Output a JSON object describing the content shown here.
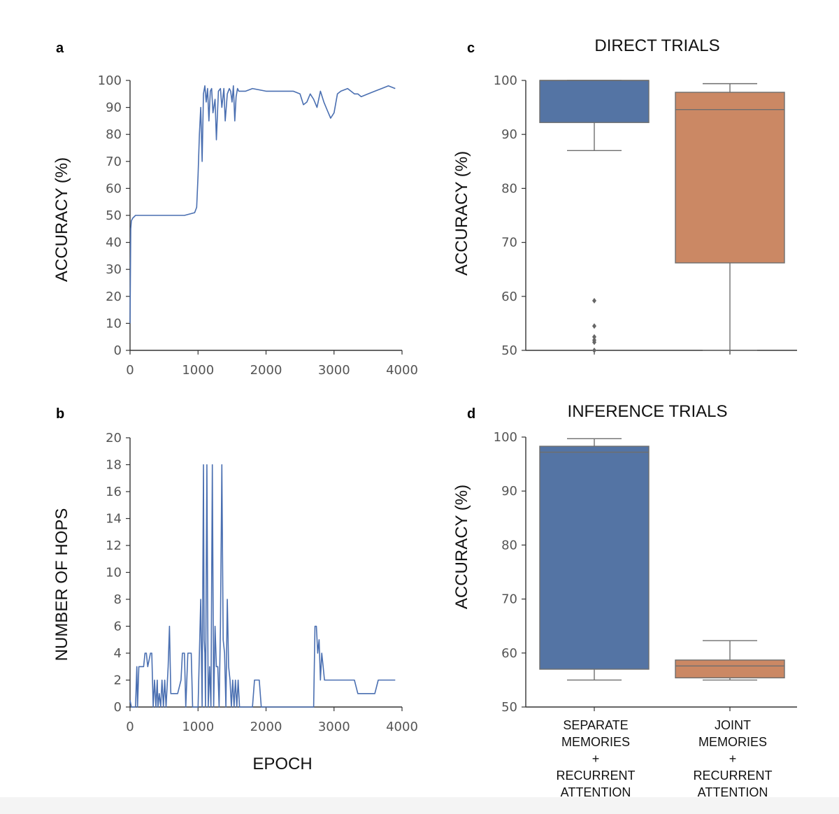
{
  "figure": {
    "panel_letters": [
      "a",
      "b",
      "c",
      "d"
    ],
    "shared_xlabel": "EPOCH"
  },
  "colors": {
    "line": "#4a6fb1",
    "blue_box": "#5474a4",
    "orange_box": "#cb8864",
    "box_edge": "#6e6e6e"
  },
  "chart_data": [
    {
      "id": "a",
      "type": "line",
      "title": "",
      "xlabel": "",
      "ylabel": "ACCURACY (%)",
      "xlim": [
        0,
        4000
      ],
      "ylim": [
        0,
        100
      ],
      "xticks": [
        0,
        1000,
        2000,
        3000,
        4000
      ],
      "yticks": [
        0,
        10,
        20,
        30,
        40,
        50,
        60,
        70,
        80,
        90,
        100
      ],
      "series": [
        {
          "name": "accuracy",
          "x": [
            0,
            10,
            20,
            40,
            80,
            150,
            250,
            400,
            600,
            800,
            950,
            980,
            1000,
            1020,
            1040,
            1060,
            1080,
            1100,
            1120,
            1140,
            1160,
            1180,
            1200,
            1220,
            1250,
            1270,
            1300,
            1330,
            1350,
            1380,
            1400,
            1430,
            1460,
            1480,
            1500,
            1520,
            1540,
            1560,
            1580,
            1600,
            1700,
            1800,
            2000,
            2200,
            2400,
            2500,
            2550,
            2600,
            2650,
            2700,
            2750,
            2800,
            2850,
            2900,
            2950,
            3000,
            3050,
            3100,
            3200,
            3300,
            3350,
            3400,
            3500,
            3600,
            3700,
            3800,
            3900
          ],
          "y": [
            10,
            45,
            48,
            49,
            50,
            50,
            50,
            50,
            50,
            50,
            51,
            53,
            65,
            80,
            90,
            70,
            95,
            98,
            92,
            97,
            85,
            96,
            97,
            88,
            93,
            78,
            96,
            97,
            90,
            97,
            85,
            95,
            97,
            96,
            92,
            98,
            85,
            94,
            97,
            96,
            96,
            97,
            96,
            96,
            96,
            95,
            91,
            92,
            95,
            93,
            90,
            96,
            92,
            89,
            86,
            88,
            95,
            96,
            97,
            95,
            95,
            94,
            95,
            96,
            97,
            98,
            97
          ]
        }
      ]
    },
    {
      "id": "b",
      "type": "line",
      "title": "",
      "xlabel": "EPOCH",
      "ylabel": "NUMBER OF HOPS",
      "xlim": [
        0,
        4000
      ],
      "ylim": [
        0,
        20
      ],
      "xticks": [
        0,
        1000,
        2000,
        3000,
        4000
      ],
      "yticks": [
        0,
        2,
        4,
        6,
        8,
        10,
        12,
        14,
        16,
        18,
        20
      ],
      "series": [
        {
          "name": "hops",
          "x": [
            0,
            20,
            30,
            80,
            100,
            110,
            130,
            150,
            200,
            220,
            240,
            260,
            300,
            320,
            340,
            360,
            380,
            400,
            410,
            430,
            450,
            470,
            490,
            510,
            530,
            540,
            560,
            580,
            600,
            700,
            750,
            770,
            800,
            820,
            850,
            900,
            920,
            950,
            1000,
            1020,
            1040,
            1060,
            1080,
            1090,
            1100,
            1110,
            1130,
            1150,
            1170,
            1190,
            1210,
            1230,
            1250,
            1270,
            1290,
            1310,
            1330,
            1350,
            1370,
            1390,
            1410,
            1430,
            1450,
            1470,
            1490,
            1510,
            1530,
            1550,
            1570,
            1590,
            1610,
            1630,
            1650,
            1700,
            1800,
            1830,
            1900,
            1930,
            1960,
            2000,
            2500,
            2700,
            2720,
            2740,
            2760,
            2780,
            2800,
            2820,
            2840,
            2860,
            2880,
            2900,
            3000,
            3100,
            3200,
            3300,
            3350,
            3400,
            3500,
            3600,
            3650,
            3700,
            3900
          ],
          "y": [
            0.5,
            0,
            0,
            0,
            3,
            0,
            3,
            3,
            3,
            4,
            4,
            3,
            4,
            4,
            0,
            2,
            0,
            2,
            0,
            1,
            0,
            2,
            0,
            2,
            0,
            1,
            3,
            6,
            1,
            1,
            2,
            4,
            4,
            0,
            4,
            4,
            0,
            0,
            0,
            4,
            8,
            0,
            18,
            5,
            4,
            0,
            18,
            0,
            3,
            0,
            18,
            0,
            6,
            3,
            3,
            0,
            6,
            18,
            5,
            4,
            0,
            8,
            3,
            2,
            0,
            2,
            0,
            2,
            0,
            2,
            0,
            0,
            0,
            0,
            0,
            2,
            2,
            0,
            0,
            0,
            0,
            0,
            6,
            6,
            4,
            5,
            2,
            4,
            3,
            2,
            2,
            2,
            2,
            2,
            2,
            2,
            1,
            1,
            1,
            1,
            2,
            2,
            2
          ]
        }
      ]
    },
    {
      "id": "c",
      "type": "box",
      "title": "DIRECT TRIALS",
      "xlabel": "",
      "ylabel": "ACCURACY (%)",
      "ylim": [
        50,
        100
      ],
      "yticks": [
        50,
        60,
        70,
        80,
        90,
        100
      ],
      "categories": [
        "",
        ""
      ],
      "boxes": [
        {
          "name": "SEPARATE MEMORIES + RECURRENT ATTENTION",
          "whisker_low": 87,
          "q1": 92.2,
          "median": 100,
          "q3": 100,
          "whisker_high": 100,
          "outliers": [
            59.2,
            54.5,
            52.5,
            51.9,
            51.5,
            50
          ]
        },
        {
          "name": "JOINT MEMORIES + RECURRENT ATTENTION",
          "whisker_low": 50,
          "q1": 66.2,
          "median": 94.6,
          "q3": 97.8,
          "whisker_high": 99.4,
          "outliers": []
        }
      ]
    },
    {
      "id": "d",
      "type": "box",
      "title": "INFERENCE TRIALS",
      "xlabel": "",
      "ylabel": "ACCURACY (%)",
      "ylim": [
        50,
        100
      ],
      "yticks": [
        50,
        60,
        70,
        80,
        90,
        100
      ],
      "categories": [
        [
          "SEPARATE",
          "MEMORIES",
          "+",
          "RECURRENT",
          "ATTENTION"
        ],
        [
          "JOINT",
          "MEMORIES",
          "+",
          "RECURRENT",
          "ATTENTION"
        ]
      ],
      "boxes": [
        {
          "name": "SEPARATE MEMORIES + RECURRENT ATTENTION",
          "whisker_low": 55,
          "q1": 57,
          "median": 97.2,
          "q3": 98.3,
          "whisker_high": 99.7,
          "outliers": []
        },
        {
          "name": "JOINT MEMORIES + RECURRENT ATTENTION",
          "whisker_low": 55,
          "q1": 55.4,
          "median": 57.6,
          "q3": 58.7,
          "whisker_high": 62.3,
          "outliers": []
        }
      ]
    }
  ]
}
